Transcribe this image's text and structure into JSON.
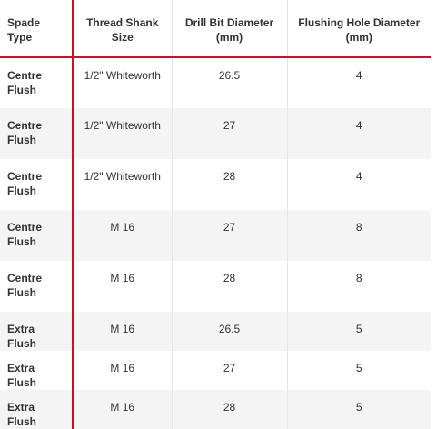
{
  "table": {
    "headers": [
      "Spade Type",
      "Thread Shank Size",
      "Drill Bit Diameter (mm)",
      "Flushing Hole Diameter (mm)"
    ],
    "rows": [
      {
        "spade_type": "Centre Flush",
        "thread_shank_size": "1/2\" Whiteworth",
        "drill_bit_diameter": "26.5",
        "flushing_hole_diameter": "4"
      },
      {
        "spade_type": "Centre Flush",
        "thread_shank_size": "1/2\" Whiteworth",
        "drill_bit_diameter": "27",
        "flushing_hole_diameter": "4"
      },
      {
        "spade_type": "Centre Flush",
        "thread_shank_size": "1/2\" Whiteworth",
        "drill_bit_diameter": "28",
        "flushing_hole_diameter": "4"
      },
      {
        "spade_type": "Centre Flush",
        "thread_shank_size": "M 16",
        "drill_bit_diameter": "27",
        "flushing_hole_diameter": "8"
      },
      {
        "spade_type": "Centre Flush",
        "thread_shank_size": "M 16",
        "drill_bit_diameter": "28",
        "flushing_hole_diameter": "8"
      },
      {
        "spade_type": "Extra Flush",
        "thread_shank_size": "M 16",
        "drill_bit_diameter": "26.5",
        "flushing_hole_diameter": "5"
      },
      {
        "spade_type": "Extra Flush",
        "thread_shank_size": "M 16",
        "drill_bit_diameter": "27",
        "flushing_hole_diameter": "5"
      },
      {
        "spade_type": "Extra Flush",
        "thread_shank_size": "M 16",
        "drill_bit_diameter": "28",
        "flushing_hole_diameter": "5"
      }
    ]
  },
  "colors": {
    "accent_rule": "#c8102e",
    "stripe_background": "#f4f4f4",
    "text": "#333333"
  }
}
